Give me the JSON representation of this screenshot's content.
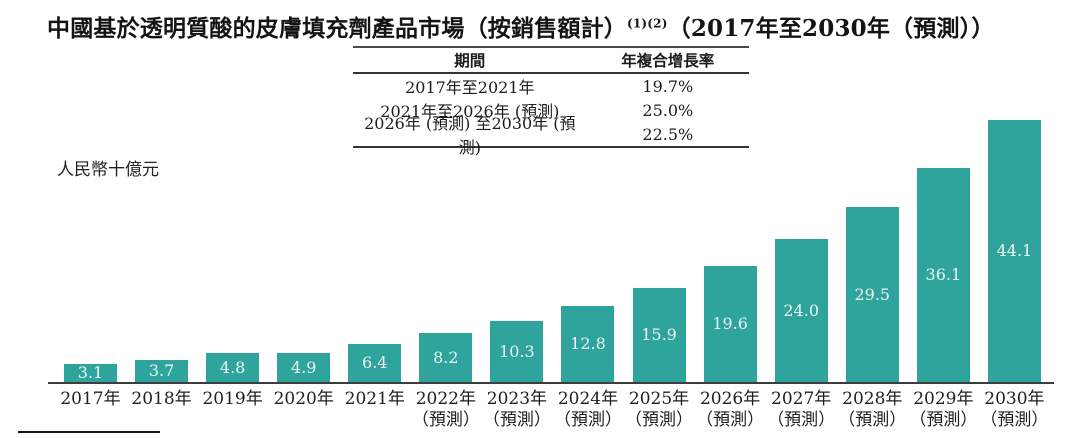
{
  "page": {
    "title_main": "中國基於透明質酸的皮膚填充劑產品市場（按銷售額計）",
    "title_superscript": "(1)(2)",
    "title_range": "（2017年至2030年（預測））"
  },
  "cagr_table": {
    "period_header": "期間",
    "cagr_header": "年複合增長率",
    "rows": [
      {
        "period": "2017年至2021年",
        "cagr": "19.7%"
      },
      {
        "period": "2021年至2026年 (預測)",
        "cagr": "25.0%"
      },
      {
        "period": "2026年 (預測) 至2030年 (預測)",
        "cagr": "22.5%"
      }
    ]
  },
  "chart_data": {
    "type": "bar",
    "title": "中國基於透明質酸的皮膚填充劑產品市場（按銷售額計）（2017年至2030年（預測））",
    "ylabel": "人民幣十億元",
    "xlabel": "",
    "categories": [
      "2017年",
      "2018年",
      "2019年",
      "2020年",
      "2021年",
      "2022年",
      "2023年",
      "2024年",
      "2025年",
      "2026年",
      "2027年",
      "2028年",
      "2029年",
      "2030年"
    ],
    "category_notes": [
      "",
      "",
      "",
      "",
      "",
      "（預測）",
      "（預測）",
      "（預測）",
      "（預測）",
      "（預測）",
      "（預測）",
      "（預測）",
      "（預測）",
      "（預測）"
    ],
    "values": [
      3.1,
      3.7,
      4.8,
      4.9,
      6.4,
      8.2,
      10.3,
      12.8,
      15.9,
      19.6,
      24.0,
      29.5,
      36.1,
      44.1
    ],
    "ylim": [
      0,
      46
    ],
    "grid": false,
    "legend": "none",
    "bar_color": "#2fa49c",
    "value_label_color": "#edf4f3",
    "axis_color": "#3d3d3d"
  }
}
